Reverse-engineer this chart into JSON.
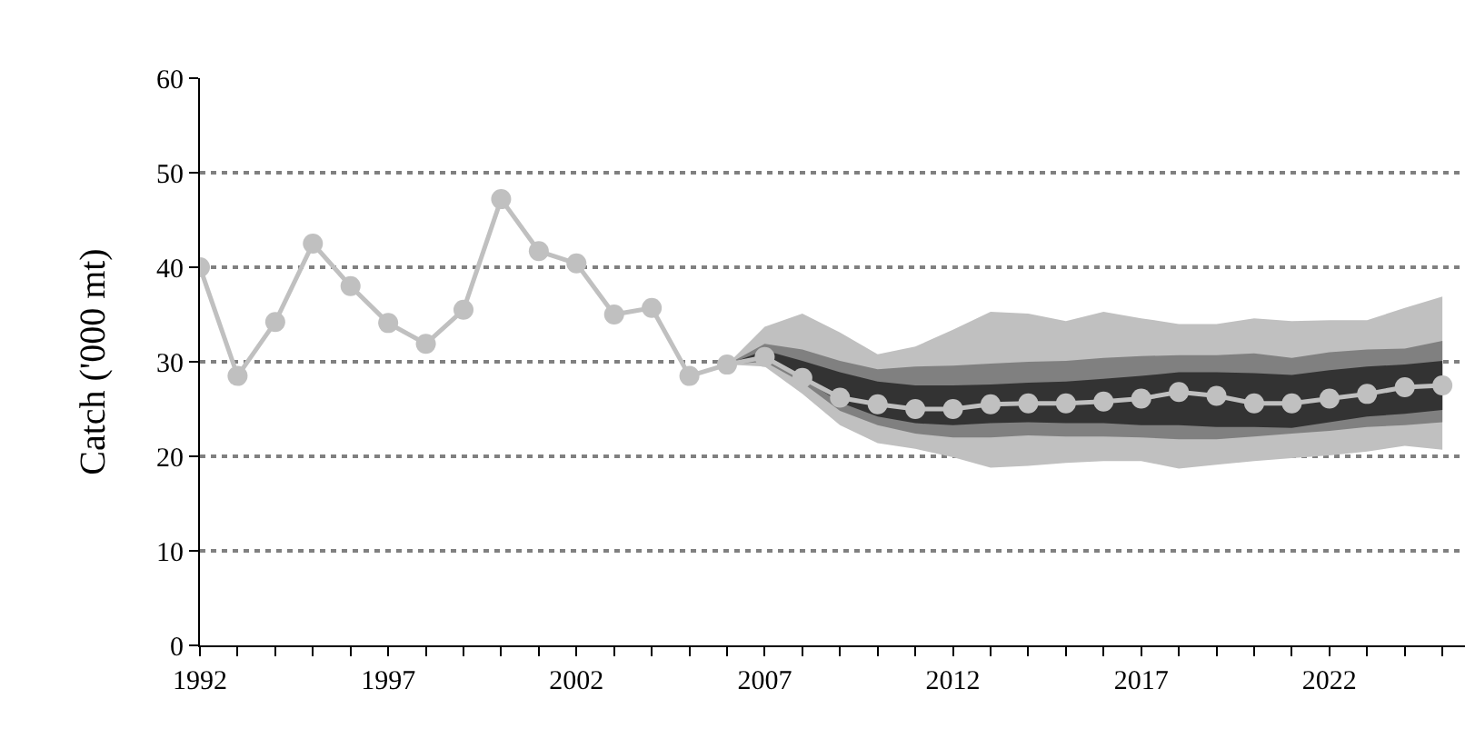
{
  "chart_data": {
    "type": "line",
    "ylabel": "Catch ('000 mt)",
    "x": [
      1992,
      1993,
      1994,
      1995,
      1996,
      1997,
      1998,
      1999,
      2000,
      2001,
      2002,
      2003,
      2004,
      2005,
      2006,
      2007,
      2008,
      2009,
      2010,
      2011,
      2012,
      2013,
      2014,
      2015,
      2016,
      2017,
      2018,
      2019,
      2020,
      2021,
      2022,
      2023,
      2024,
      2025
    ],
    "series": [
      {
        "x": [
          2006,
          2007,
          2008,
          2009,
          2010,
          2011,
          2012,
          2013,
          2014,
          2015,
          2016,
          2017,
          2018,
          2019,
          2020,
          2021,
          2022,
          2023,
          2024,
          2025
        ],
        "color": "#c0c0c0",
        "values": [
          null,
          null,
          null,
          null,
          null,
          null,
          null,
          null,
          null,
          null,
          null,
          null,
          null,
          null,
          null,
          null,
          null,
          null,
          null,
          null
        ],
        "lower": [
          29.7,
          29.5,
          26.6,
          23.3,
          21.4,
          20.8,
          19.9,
          18.8,
          19.0,
          19.3,
          19.5,
          19.5,
          18.7,
          19.1,
          19.5,
          19.8,
          20.1,
          20.5,
          21.1,
          20.7
        ],
        "upper": [
          29.7,
          33.7,
          35.1,
          33.1,
          30.8,
          31.6,
          33.4,
          35.3,
          35.1,
          34.3,
          35.3,
          34.6,
          34.0,
          34.0,
          34.6,
          34.3,
          34.4,
          34.4,
          35.7,
          36.9
        ]
      },
      {
        "x": [
          2006,
          2007,
          2008,
          2009,
          2010,
          2011,
          2012,
          2013,
          2014,
          2015,
          2016,
          2017,
          2018,
          2019,
          2020,
          2021,
          2022,
          2023,
          2024,
          2025
        ],
        "color": "#808080",
        "values": [
          null,
          null,
          null,
          null,
          null,
          null,
          null,
          null,
          null,
          null,
          null,
          null,
          null,
          null,
          null,
          null,
          null,
          null,
          null,
          null
        ],
        "lower": [
          29.7,
          30.0,
          27.8,
          24.8,
          23.3,
          22.4,
          22.0,
          22.0,
          22.2,
          22.1,
          22.1,
          22.0,
          21.8,
          21.8,
          22.1,
          22.4,
          22.7,
          23.1,
          23.3,
          23.6
        ],
        "upper": [
          29.7,
          31.9,
          31.3,
          30.1,
          29.2,
          29.5,
          29.6,
          29.8,
          30.0,
          30.1,
          30.4,
          30.6,
          30.7,
          30.7,
          30.9,
          30.4,
          31.0,
          31.3,
          31.4,
          32.2
        ]
      },
      {
        "x": [
          2006,
          2007,
          2008,
          2009,
          2010,
          2011,
          2012,
          2013,
          2014,
          2015,
          2016,
          2017,
          2018,
          2019,
          2020,
          2021,
          2022,
          2023,
          2024,
          2025
        ],
        "color": "#333333",
        "values": [
          null,
          null,
          null,
          null,
          null,
          null,
          null,
          null,
          null,
          null,
          null,
          null,
          null,
          null,
          null,
          null,
          null,
          null,
          null,
          null
        ],
        "lower": [
          29.7,
          30.4,
          28.3,
          25.7,
          24.2,
          23.5,
          23.3,
          23.5,
          23.6,
          23.5,
          23.5,
          23.3,
          23.3,
          23.1,
          23.1,
          23.0,
          23.6,
          24.2,
          24.5,
          24.9
        ],
        "upper": [
          29.7,
          31.2,
          30.1,
          28.9,
          27.9,
          27.5,
          27.5,
          27.6,
          27.8,
          27.9,
          28.2,
          28.5,
          28.9,
          28.9,
          28.8,
          28.6,
          29.1,
          29.5,
          29.7,
          30.1
        ]
      },
      {
        "color": "#c0c0c0",
        "values": [
          40.0,
          28.5,
          34.2,
          42.5,
          38.0,
          34.1,
          31.9,
          35.5,
          47.2,
          41.7,
          40.4,
          35.0,
          35.7,
          28.5,
          29.7,
          30.5,
          28.3,
          26.2,
          25.5,
          25.0,
          25.0,
          25.5,
          25.6,
          25.6,
          25.8,
          26.1,
          26.8,
          26.4,
          25.6,
          25.6,
          26.1,
          26.6,
          27.3,
          27.5
        ]
      }
    ],
    "xlim": [
      1992,
      2025.6
    ],
    "xticks": [
      1992,
      {
        "value": 1993,
        "label": null
      },
      {
        "value": 1994,
        "label": null
      },
      {
        "value": 1995,
        "label": null
      },
      {
        "value": 1996,
        "label": null
      },
      1997,
      {
        "value": 1998,
        "label": null
      },
      {
        "value": 1999,
        "label": null
      },
      {
        "value": 2000,
        "label": null
      },
      {
        "value": 2001,
        "label": null
      },
      2002,
      {
        "value": 2003,
        "label": null
      },
      {
        "value": 2004,
        "label": null
      },
      {
        "value": 2005,
        "label": null
      },
      {
        "value": 2006,
        "label": null
      },
      2007,
      {
        "value": 2008,
        "label": null
      },
      {
        "value": 2009,
        "label": null
      },
      {
        "value": 2010,
        "label": null
      },
      {
        "value": 2011,
        "label": null
      },
      2012,
      {
        "value": 2013,
        "label": null
      },
      {
        "value": 2014,
        "label": null
      },
      {
        "value": 2015,
        "label": null
      },
      {
        "value": 2016,
        "label": null
      },
      2017,
      {
        "value": 2018,
        "label": null
      },
      {
        "value": 2019,
        "label": null
      },
      {
        "value": 2020,
        "label": null
      },
      {
        "value": 2021,
        "label": null
      },
      2022,
      {
        "value": 2023,
        "label": null
      },
      {
        "value": 2024,
        "label": null
      },
      {
        "value": 2025,
        "label": null
      }
    ],
    "ylim": [
      0,
      60
    ],
    "yticks": [
      0,
      10,
      20,
      30,
      40,
      50,
      60
    ],
    "grid": "y",
    "marker": "circle",
    "line_style": "solid"
  }
}
